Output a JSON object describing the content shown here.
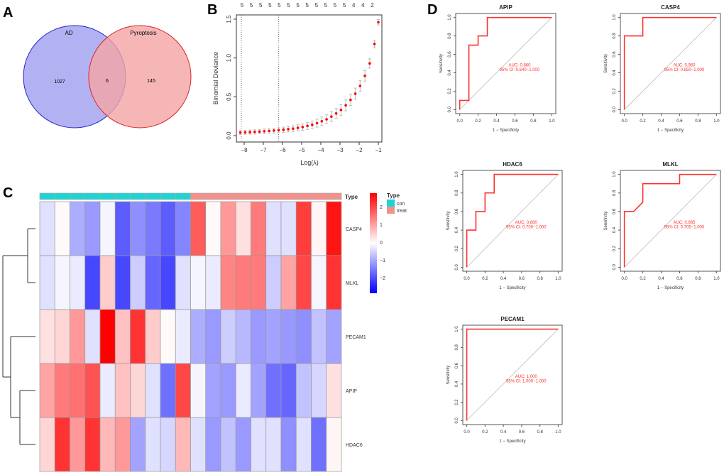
{
  "panels": {
    "a": "A",
    "b": "B",
    "c": "C",
    "d": "D"
  },
  "chart_data": [
    {
      "type": "venn",
      "sets": [
        {
          "name": "AD",
          "only": 1027,
          "color": "#9f9ff0",
          "stroke": "#2222cc"
        },
        {
          "name": "Pyroptosis",
          "only": 145,
          "color": "#f4a4a4",
          "stroke": "#dd2222"
        }
      ],
      "intersection": 6
    },
    {
      "type": "scatter",
      "xlabel": "Log(λ)",
      "ylabel": "Binomial Deviance",
      "xlim": [
        -8.4,
        -0.8
      ],
      "ylim": [
        0,
        1.55
      ],
      "xticks": [
        -8,
        -7,
        -6,
        -5,
        -4,
        -3,
        -2,
        -1
      ],
      "yticks": [
        "0.0",
        "0.5",
        "1.0",
        "1.5"
      ],
      "top_axis_labels": [
        "5",
        "5",
        "5",
        "5",
        "5",
        "5",
        "5",
        "5",
        "5",
        "5",
        "5",
        "5",
        "4",
        "4",
        "2"
      ],
      "vlines": [
        -8.15,
        -6.2
      ],
      "x": [
        -8.2,
        -7.95,
        -7.7,
        -7.45,
        -7.2,
        -6.95,
        -6.7,
        -6.45,
        -6.2,
        -5.95,
        -5.7,
        -5.45,
        -5.2,
        -4.95,
        -4.7,
        -4.45,
        -4.2,
        -3.95,
        -3.7,
        -3.45,
        -3.2,
        -2.95,
        -2.7,
        -2.45,
        -2.2,
        -1.95,
        -1.7,
        -1.45,
        -1.2,
        -1.0
      ],
      "y": [
        0.04,
        0.042,
        0.045,
        0.048,
        0.052,
        0.056,
        0.06,
        0.065,
        0.07,
        0.076,
        0.083,
        0.09,
        0.1,
        0.11,
        0.125,
        0.14,
        0.16,
        0.185,
        0.21,
        0.245,
        0.285,
        0.33,
        0.39,
        0.46,
        0.54,
        0.64,
        0.77,
        0.93,
        1.18,
        1.46
      ],
      "se": [
        0.025,
        0.025,
        0.026,
        0.027,
        0.028,
        0.029,
        0.03,
        0.031,
        0.032,
        0.034,
        0.036,
        0.038,
        0.04,
        0.042,
        0.045,
        0.048,
        0.051,
        0.055,
        0.058,
        0.062,
        0.065,
        0.068,
        0.07,
        0.072,
        0.072,
        0.07,
        0.068,
        0.06,
        0.05,
        0.035
      ],
      "point_color": "#ff0000"
    },
    {
      "type": "heatmap",
      "rows": [
        "CASP4",
        "MLKL",
        "PECAM1",
        "APIP",
        "HDAC6"
      ],
      "groups": [
        "con",
        "con",
        "con",
        "con",
        "con",
        "con",
        "con",
        "con",
        "con",
        "con",
        "treat",
        "treat",
        "treat",
        "treat",
        "treat",
        "treat",
        "treat",
        "treat",
        "treat",
        "treat"
      ],
      "values": [
        [
          -0.3,
          0.05,
          -0.8,
          -1.0,
          -0.1,
          -1.6,
          -1.1,
          -1.3,
          -1.6,
          -1.2,
          1.6,
          0.05,
          1.0,
          0.3,
          1.3,
          -0.3,
          -0.3,
          1.9,
          0.1,
          2.3
        ],
        [
          -0.3,
          -0.1,
          -0.2,
          -1.8,
          0.5,
          -1.8,
          -0.5,
          -1.5,
          -1.8,
          -0.3,
          -0.1,
          -0.2,
          1.2,
          1.3,
          1.3,
          -0.5,
          0.9,
          1.8,
          -0.1,
          2.0
        ],
        [
          0.3,
          0.4,
          1.0,
          -0.3,
          2.5,
          0.6,
          2.0,
          0.5,
          0.05,
          -0.2,
          -0.8,
          -1.0,
          -0.5,
          -0.7,
          -1.0,
          -0.9,
          -1.0,
          -1.1,
          -0.6,
          -0.9
        ],
        [
          0.9,
          1.3,
          1.4,
          1.7,
          -0.2,
          0.6,
          0.4,
          -0.3,
          -1.4,
          1.8,
          -0.1,
          -0.9,
          -1.0,
          -0.2,
          -0.9,
          -1.4,
          -1.5,
          -0.6,
          -0.4,
          0.3
        ],
        [
          0.4,
          2.0,
          1.0,
          2.0,
          0.7,
          1.0,
          -0.9,
          -0.3,
          -0.4,
          0.7,
          -0.3,
          -1.0,
          -0.6,
          -1.0,
          -0.3,
          -0.3,
          -1.1,
          -0.3,
          -1.4,
          0.1
        ]
      ],
      "annotation_label": "Type",
      "legend_title": "Type",
      "legend": [
        {
          "name": "con",
          "color": "#1fd3d3"
        },
        {
          "name": "treat",
          "color": "#f4908a"
        }
      ],
      "colorbar_ticks": [
        "2",
        "1",
        "0",
        "−1",
        "−2"
      ],
      "color_low": "#0000ff",
      "color_mid": "#ffffff",
      "color_high": "#ff0000"
    },
    {
      "type": "line",
      "subtype": "roc",
      "xlabel": "1 − Specificity",
      "ylabel": "Sensitivity",
      "ticks": [
        "0.0",
        "0.2",
        "0.4",
        "0.6",
        "0.8",
        "1.0"
      ],
      "line_color": "#ff3030",
      "charts": [
        {
          "title": "APIP",
          "auc": "AUC: 0.860",
          "ci": "95% CI: 0.640−1.000",
          "x": [
            0,
            0,
            0.1,
            0.1,
            0.2,
            0.2,
            0.3,
            0.3,
            1
          ],
          "y": [
            0,
            0.1,
            0.1,
            0.7,
            0.7,
            0.8,
            0.8,
            1,
            1
          ]
        },
        {
          "title": "CASP4",
          "auc": "AUC: 0.960",
          "ci": "95% CI: 0.850−1.000",
          "x": [
            0,
            0,
            0.2,
            0.2,
            1
          ],
          "y": [
            0,
            0.8,
            0.8,
            1,
            1
          ]
        },
        {
          "title": "HDAC6",
          "auc": "AUC: 0.880",
          "ci": "95% CI: 0.700−1.000",
          "x": [
            0,
            0,
            0.1,
            0.1,
            0.2,
            0.2,
            0.3,
            0.3,
            1
          ],
          "y": [
            0,
            0.4,
            0.4,
            0.6,
            0.6,
            0.8,
            0.8,
            1,
            1
          ]
        },
        {
          "title": "MLKL",
          "auc": "AUC: 0.885",
          "ci": "95% CI: 0.705−1.000",
          "x": [
            0,
            0,
            0.1,
            0.2,
            0.2,
            0.6,
            0.6,
            1
          ],
          "y": [
            0,
            0.6,
            0.6,
            0.7,
            0.9,
            0.9,
            1,
            1
          ]
        },
        {
          "title": "PECAM1",
          "auc": "AUC: 1.000",
          "ci": "95% CI: 1.000−1.000",
          "x": [
            0,
            0,
            1
          ],
          "y": [
            0,
            1,
            1
          ]
        }
      ]
    }
  ]
}
